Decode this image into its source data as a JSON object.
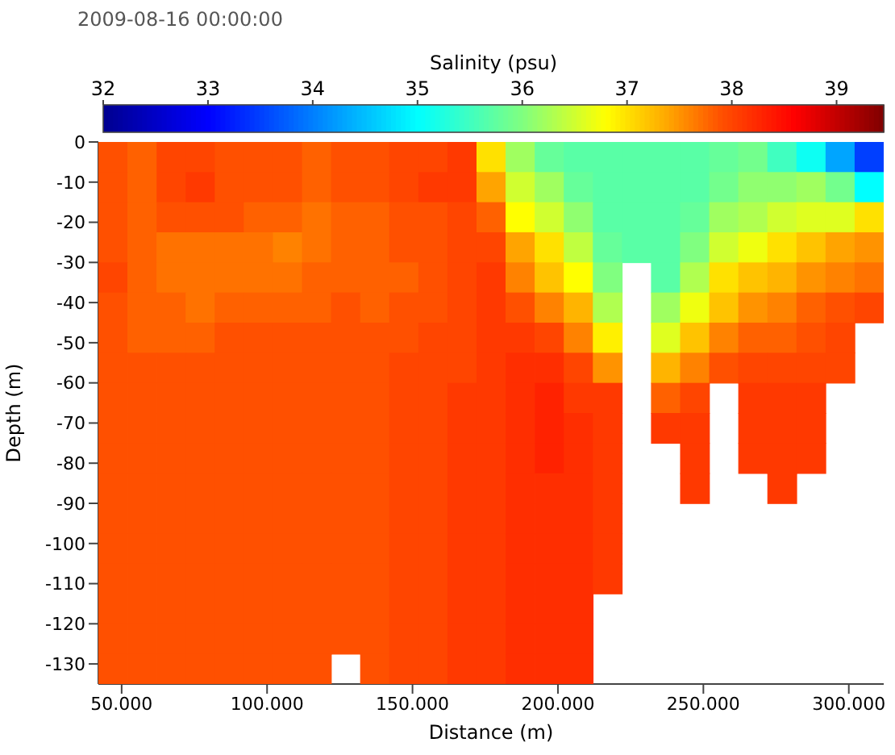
{
  "chart_data": {
    "type": "heatmap",
    "title": "2009-08-16 00:00:00",
    "clabel": "Salinity (psu)",
    "xlabel": "Distance (m)",
    "ylabel": "Depth (m)",
    "xlim": [
      42000,
      312000
    ],
    "ylim": [
      -135,
      0
    ],
    "xticks": [
      {
        "value": 50000,
        "label": "50.000"
      },
      {
        "value": 100000,
        "label": "100.000"
      },
      {
        "value": 150000,
        "label": "150.000"
      },
      {
        "value": 200000,
        "label": "200.000"
      },
      {
        "value": 250000,
        "label": "250.000"
      },
      {
        "value": 300000,
        "label": "300.000"
      }
    ],
    "yticks": [
      0,
      -10,
      -20,
      -30,
      -40,
      -50,
      -60,
      -70,
      -80,
      -90,
      -100,
      -110,
      -120,
      -130
    ],
    "clim": [
      32,
      39.45
    ],
    "cticks": [
      32,
      33,
      34,
      35,
      36,
      37,
      38,
      39
    ],
    "cells": [
      [
        37.9,
        37.8,
        38.0,
        38.0,
        37.9,
        37.9,
        37.9,
        37.8,
        37.9,
        37.9,
        38.0,
        38.0,
        38.1,
        37.0,
        36.2,
        35.8,
        35.7,
        35.7,
        35.7,
        35.7,
        35.7,
        35.8,
        35.9,
        35.5,
        35.1,
        34.3,
        33.5
      ],
      [
        37.9,
        37.8,
        38.0,
        38.1,
        37.9,
        37.9,
        37.9,
        37.8,
        37.9,
        37.9,
        38.0,
        38.1,
        38.1,
        37.4,
        36.5,
        36.2,
        35.8,
        35.7,
        35.7,
        35.7,
        35.7,
        35.9,
        36.1,
        36.1,
        36.2,
        35.9,
        35.0
      ],
      [
        37.9,
        37.8,
        37.9,
        37.9,
        37.9,
        37.8,
        37.8,
        37.7,
        37.8,
        37.8,
        37.9,
        37.9,
        38.0,
        37.8,
        36.8,
        36.5,
        36.1,
        35.7,
        35.7,
        35.7,
        35.8,
        36.2,
        36.3,
        36.5,
        36.6,
        36.6,
        37.0
      ],
      [
        37.9,
        37.8,
        37.7,
        37.7,
        37.7,
        37.7,
        37.6,
        37.7,
        37.8,
        37.8,
        37.9,
        37.9,
        38.0,
        38.0,
        37.4,
        37.0,
        36.4,
        35.8,
        35.7,
        35.7,
        36.0,
        36.5,
        36.7,
        37.0,
        37.2,
        37.4,
        37.5
      ],
      [
        38.0,
        37.8,
        37.7,
        37.7,
        37.7,
        37.7,
        37.7,
        37.8,
        37.8,
        37.8,
        37.8,
        37.9,
        38.0,
        38.1,
        37.6,
        37.2,
        36.8,
        36.0,
        null,
        35.7,
        36.3,
        37.0,
        37.2,
        37.3,
        37.5,
        37.6,
        37.7
      ],
      [
        37.9,
        37.8,
        37.8,
        37.7,
        37.8,
        37.8,
        37.8,
        37.8,
        37.9,
        37.8,
        37.9,
        37.9,
        38.0,
        38.1,
        37.9,
        37.6,
        37.3,
        36.3,
        null,
        36.2,
        36.7,
        37.2,
        37.5,
        37.6,
        37.8,
        37.9,
        38.0
      ],
      [
        37.9,
        37.8,
        37.8,
        37.8,
        37.9,
        37.9,
        37.9,
        37.9,
        37.9,
        37.9,
        37.9,
        38.0,
        38.0,
        38.1,
        38.1,
        38.0,
        37.6,
        36.9,
        null,
        36.6,
        37.2,
        37.6,
        37.8,
        37.8,
        37.9,
        38.0,
        null
      ],
      [
        37.9,
        37.9,
        37.9,
        37.9,
        37.9,
        37.9,
        37.9,
        37.9,
        37.9,
        37.9,
        38.0,
        38.0,
        38.0,
        38.1,
        38.2,
        38.2,
        38.0,
        37.5,
        null,
        37.3,
        37.6,
        37.9,
        38.0,
        38.0,
        38.0,
        38.0,
        null
      ],
      [
        37.9,
        37.9,
        37.9,
        37.9,
        37.9,
        37.9,
        37.9,
        37.9,
        37.9,
        37.9,
        38.0,
        38.0,
        38.1,
        38.1,
        38.2,
        38.3,
        38.1,
        38.1,
        null,
        37.8,
        38.0,
        null,
        38.1,
        38.1,
        38.1,
        null,
        null
      ],
      [
        37.9,
        37.9,
        37.9,
        37.9,
        37.9,
        37.9,
        37.9,
        37.9,
        37.9,
        37.9,
        38.0,
        38.0,
        38.1,
        38.1,
        38.2,
        38.3,
        38.2,
        38.1,
        null,
        38.1,
        38.1,
        null,
        38.1,
        38.1,
        38.1,
        null,
        null
      ],
      [
        37.9,
        37.9,
        37.9,
        37.9,
        37.9,
        37.9,
        37.9,
        37.9,
        37.9,
        37.9,
        38.0,
        38.0,
        38.1,
        38.1,
        38.2,
        38.3,
        38.2,
        38.1,
        null,
        null,
        38.1,
        null,
        38.1,
        38.1,
        38.1,
        null,
        null
      ],
      [
        37.9,
        37.9,
        37.9,
        37.9,
        37.9,
        37.9,
        37.9,
        37.9,
        37.9,
        37.9,
        38.0,
        38.0,
        38.1,
        38.1,
        38.2,
        38.2,
        38.2,
        38.1,
        null,
        null,
        38.1,
        null,
        null,
        38.1,
        null,
        null,
        null
      ],
      [
        37.9,
        37.9,
        37.9,
        37.9,
        37.9,
        37.9,
        37.9,
        37.9,
        37.9,
        37.9,
        38.0,
        38.0,
        38.1,
        38.1,
        38.2,
        38.2,
        38.2,
        38.1,
        null,
        null,
        null,
        null,
        null,
        null,
        null,
        null,
        null
      ],
      [
        37.9,
        37.9,
        37.9,
        37.9,
        37.9,
        37.9,
        37.9,
        37.9,
        37.9,
        37.9,
        38.0,
        38.0,
        38.1,
        38.1,
        38.2,
        38.2,
        38.2,
        38.1,
        null,
        null,
        null,
        null,
        null,
        null,
        null,
        null,
        null
      ],
      [
        37.9,
        37.9,
        37.9,
        37.9,
        37.9,
        37.9,
        37.9,
        37.9,
        37.9,
        37.9,
        38.0,
        38.0,
        38.1,
        38.1,
        38.2,
        38.2,
        38.2,
        38.1,
        null,
        null,
        null,
        null,
        null,
        null,
        null,
        null,
        null
      ],
      [
        37.9,
        37.9,
        37.9,
        37.9,
        37.9,
        37.9,
        37.9,
        37.9,
        37.9,
        37.9,
        38.0,
        38.0,
        38.1,
        38.1,
        38.2,
        38.2,
        38.2,
        null,
        null,
        null,
        null,
        null,
        null,
        null,
        null,
        null,
        null
      ],
      [
        37.9,
        37.9,
        37.9,
        37.9,
        37.9,
        37.9,
        37.9,
        37.9,
        37.9,
        37.9,
        38.0,
        38.0,
        38.1,
        38.1,
        38.2,
        38.2,
        38.2,
        null,
        null,
        null,
        null,
        null,
        null,
        null,
        null,
        null,
        null
      ],
      [
        37.9,
        37.9,
        37.9,
        37.9,
        37.9,
        37.9,
        37.9,
        37.9,
        null,
        37.9,
        38.0,
        38.0,
        38.1,
        38.1,
        38.2,
        38.2,
        38.2,
        null,
        null,
        null,
        null,
        null,
        null,
        null,
        null,
        null,
        null
      ]
    ]
  }
}
